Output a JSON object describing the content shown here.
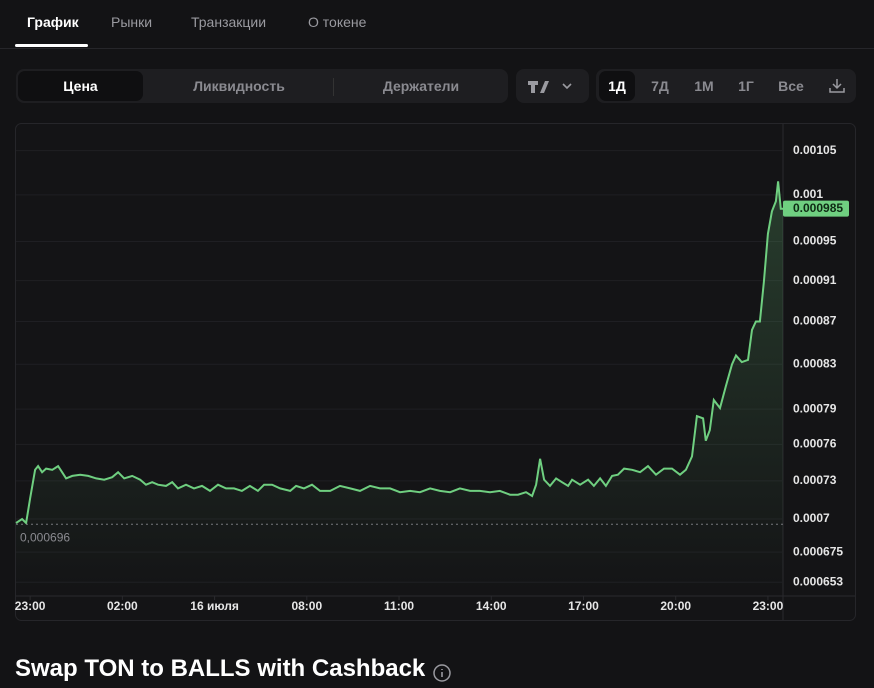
{
  "tabs": [
    "График",
    "Рынки",
    "Транзакции",
    "О токене"
  ],
  "chart_modes": [
    "Цена",
    "Ликвидность",
    "Держатели"
  ],
  "periods": [
    "1Д",
    "7Д",
    "1М",
    "1Г",
    "Все"
  ],
  "chart_data": {
    "type": "line",
    "log_scale": true,
    "grid": true,
    "color": "#6fcf80",
    "x": [
      -0.46,
      -0.26,
      -0.13,
      0,
      0.16,
      0.26,
      0.39,
      0.52,
      0.72,
      0.91,
      1.04,
      1.17,
      1.37,
      1.63,
      1.89,
      2.15,
      2.41,
      2.67,
      2.86,
      3.06,
      3.32,
      3.58,
      3.77,
      3.97,
      4.16,
      4.42,
      4.62,
      4.81,
      5.07,
      5.33,
      5.59,
      5.85,
      6.11,
      6.37,
      6.63,
      6.89,
      7.15,
      7.41,
      7.61,
      7.87,
      8.13,
      8.46,
      8.65,
      8.91,
      9.17,
      9.43,
      9.76,
      10.08,
      10.41,
      10.73,
      11.06,
      11.38,
      11.71,
      12.03,
      12.36,
      12.68,
      13.01,
      13.33,
      13.66,
      13.98,
      14.31,
      14.63,
      14.96,
      15.28,
      15.61,
      15.87,
      16.13,
      16.33,
      16.46,
      16.59,
      16.72,
      16.91,
      17.11,
      17.3,
      17.5,
      17.63,
      17.89,
      18.15,
      18.34,
      18.54,
      18.73,
      18.93,
      19.12,
      19.32,
      19.58,
      19.84,
      20.1,
      20.36,
      20.62,
      20.88,
      21.14,
      21.33,
      21.53,
      21.69,
      21.89,
      21.98,
      22.11,
      22.24,
      22.44,
      22.63,
      22.83,
      22.96,
      23.15,
      23.35,
      23.48,
      23.61,
      23.74,
      23.87,
      24,
      24.13,
      24.26,
      24.33,
      24.42,
      24.49
    ],
    "values": [
      0.000697,
      0.0007,
      0.000697,
      0.000716,
      0.000739,
      0.000742,
      0.000737,
      0.00074,
      0.000739,
      0.000742,
      0.000737,
      0.000732,
      0.000734,
      0.000735,
      0.000734,
      0.000732,
      0.000731,
      0.000733,
      0.000737,
      0.000732,
      0.000734,
      0.000731,
      0.000727,
      0.000729,
      0.000727,
      0.000726,
      0.000729,
      0.000724,
      0.000727,
      0.000724,
      0.000726,
      0.000722,
      0.000727,
      0.000724,
      0.000724,
      0.000722,
      0.000726,
      0.000722,
      0.000727,
      0.000727,
      0.000724,
      0.000722,
      0.000726,
      0.000724,
      0.000727,
      0.000722,
      0.000722,
      0.000726,
      0.000724,
      0.000722,
      0.000726,
      0.000724,
      0.000724,
      0.000721,
      0.000722,
      0.000721,
      0.000724,
      0.000722,
      0.000721,
      0.000724,
      0.000722,
      0.000722,
      0.000721,
      0.000722,
      0.000719,
      0.000719,
      0.000721,
      0.000718,
      0.000727,
      0.000748,
      0.000731,
      0.000726,
      0.000732,
      0.000729,
      0.000726,
      0.000731,
      0.000727,
      0.000731,
      0.000726,
      0.000732,
      0.000726,
      0.000734,
      0.000735,
      0.00074,
      0.000739,
      0.000737,
      0.000742,
      0.000735,
      0.00074,
      0.00074,
      0.000735,
      0.000739,
      0.00075,
      0.000784,
      0.000782,
      0.000763,
      0.000772,
      0.000798,
      0.000791,
      0.00081,
      0.00083,
      0.000838,
      0.000832,
      0.000834,
      0.000862,
      0.00087,
      0.00087,
      0.000909,
      0.000958,
      0.000982,
      0.000993,
      0.001015,
      0.000985,
      0.000985
    ],
    "xlim": [
      -0.46,
      24.49
    ],
    "xticks": [
      {
        "value": 0,
        "label": "23:00"
      },
      {
        "value": 3,
        "label": "02:00"
      },
      {
        "value": 6,
        "label": "16 июля"
      },
      {
        "value": 9,
        "label": "08:00"
      },
      {
        "value": 12,
        "label": "11:00"
      },
      {
        "value": 15,
        "label": "14:00"
      },
      {
        "value": 18,
        "label": "17:00"
      },
      {
        "value": 21,
        "label": "20:00"
      },
      {
        "value": 24,
        "label": "23:00"
      }
    ],
    "ylim": [
      0.000646,
      0.00108
    ],
    "yticks": [
      0.00105,
      0.001,
      0.00095,
      0.00091,
      0.00087,
      0.00083,
      0.00079,
      0.00076,
      0.00073,
      0.0007,
      0.000675,
      0.000653
    ],
    "current_price": 0.000985,
    "min_price": {
      "value": 0.000696,
      "label": "0,000696"
    }
  },
  "heading": "Swap TON to BALLS with Cashback"
}
